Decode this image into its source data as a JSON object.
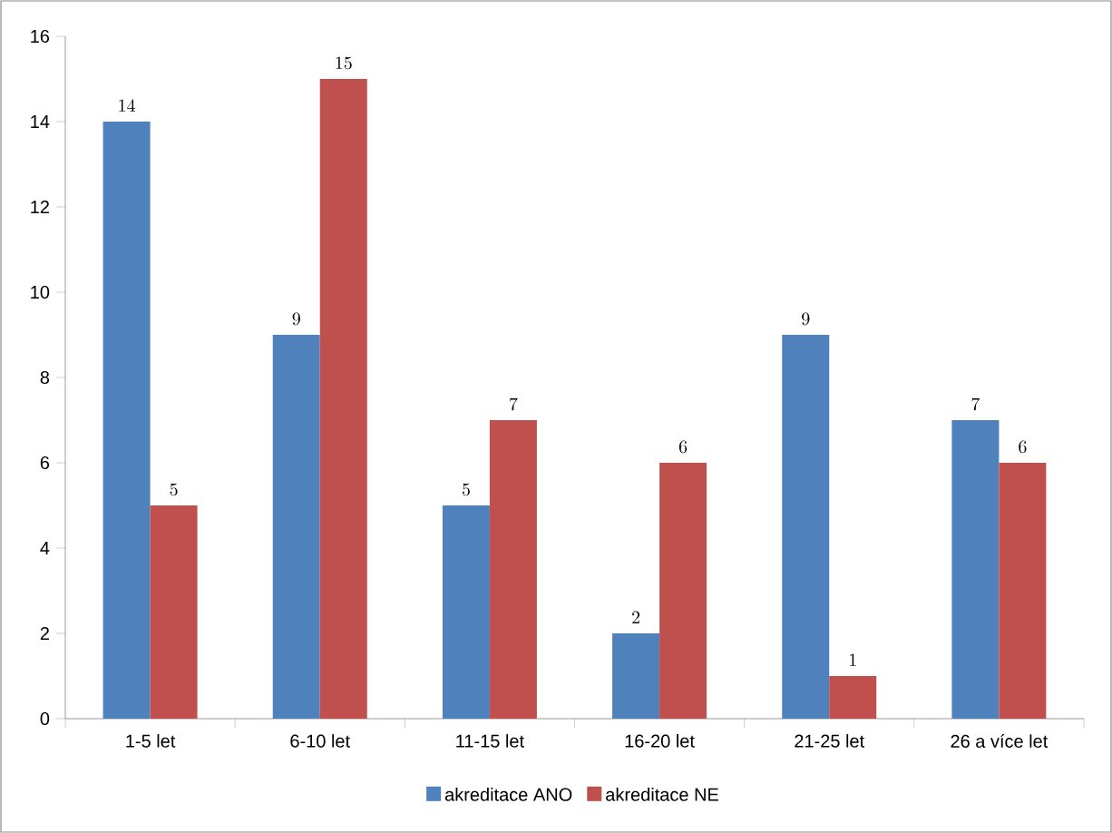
{
  "chart_data": {
    "type": "bar",
    "categories": [
      "1-5 let",
      "6-10 let",
      "11-15 let",
      "16-20 let",
      "21-25 let",
      "26 a více let"
    ],
    "series": [
      {
        "name": "akreditace ANO",
        "color": "#4f81bd",
        "values": [
          14,
          9,
          5,
          2,
          9,
          7
        ]
      },
      {
        "name": "akreditace NE",
        "color": "#c0504d",
        "values": [
          5,
          15,
          7,
          6,
          1,
          6
        ]
      }
    ],
    "ylim": [
      0,
      16
    ],
    "yticks": [
      0,
      2,
      4,
      6,
      8,
      10,
      12,
      14,
      16
    ],
    "data_labels": true,
    "legend": "bottom",
    "grid": false
  }
}
